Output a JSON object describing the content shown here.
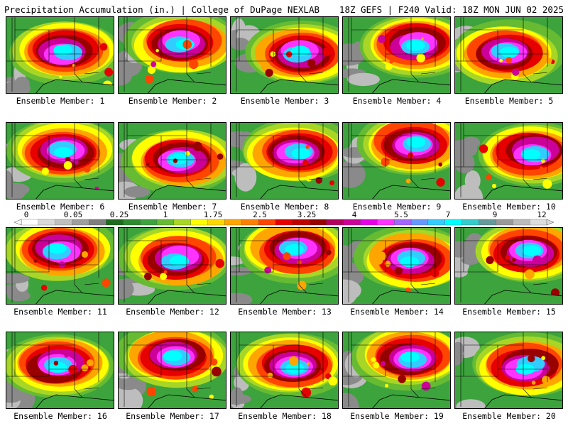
{
  "header": {
    "left_title": "Precipitation Accumulation (in.) | College of DuPage NEXLAB",
    "right_title": "18Z GEFS | F240 Valid: 18Z MON JUN 02 2025"
  },
  "legend": {
    "tick_labels": [
      "0",
      "0.05",
      "0.25",
      "1",
      "1.75",
      "2.5",
      "3.25",
      "4",
      "5.5",
      "7",
      "9",
      "12"
    ],
    "colors": [
      "#ffffff",
      "#d9d9d9",
      "#bfbfbf",
      "#9e9e9e",
      "#7f7f7f",
      "#1d6b1d",
      "#2e8b2e",
      "#3da33d",
      "#66bb33",
      "#a8d626",
      "#ffff00",
      "#ffd700",
      "#ffa500",
      "#ff7f00",
      "#ff4500",
      "#e60000",
      "#c00000",
      "#990000",
      "#b3005f",
      "#cc0099",
      "#e600e6",
      "#ff33ff",
      "#a366ff",
      "#6699ff",
      "#33ccff",
      "#00ffff",
      "#33cccc",
      "#669999",
      "#999999",
      "#bbbbbb",
      "#dddddd"
    ]
  },
  "panels": [
    {
      "label": "Ensemble Member: 1"
    },
    {
      "label": "Ensemble Member: 2"
    },
    {
      "label": "Ensemble Member: 3"
    },
    {
      "label": "Ensemble Member: 4"
    },
    {
      "label": "Ensemble Member: 5"
    },
    {
      "label": "Ensemble Member: 6"
    },
    {
      "label": "Ensemble Member: 7"
    },
    {
      "label": "Ensemble Member: 8"
    },
    {
      "label": "Ensemble Member: 9"
    },
    {
      "label": "Ensemble Member: 10"
    },
    {
      "label": "Ensemble Member: 11"
    },
    {
      "label": "Ensemble Member: 12"
    },
    {
      "label": "Ensemble Member: 13"
    },
    {
      "label": "Ensemble Member: 14"
    },
    {
      "label": "Ensemble Member: 15"
    },
    {
      "label": "Ensemble Member: 16"
    },
    {
      "label": "Ensemble Member: 17"
    },
    {
      "label": "Ensemble Member: 18"
    },
    {
      "label": "Ensemble Member: 19"
    },
    {
      "label": "Ensemble Member: 20"
    }
  ]
}
